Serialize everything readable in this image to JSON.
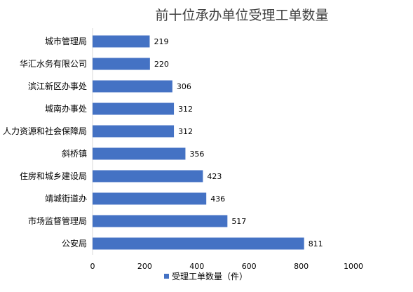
{
  "chart_data": {
    "type": "bar",
    "orientation": "horizontal",
    "title": "前十位承办单位受理工单数量",
    "categories": [
      "城市管理局",
      "华汇水务有限公司",
      "滨江新区办事处",
      "城南办事处",
      "人力资源和社会保障局",
      "斜桥镇",
      "住房和城乡建设局",
      "靖城街道办",
      "市场监督管理局",
      "公安局"
    ],
    "series": [
      {
        "name": "受理工单数量（件）",
        "values": [
          219,
          220,
          306,
          312,
          312,
          356,
          423,
          436,
          517,
          811
        ],
        "color": "#4472C4"
      }
    ],
    "xlim": [
      0,
      1000
    ],
    "xticks": [
      0,
      200,
      400,
      600,
      800,
      1000
    ],
    "grid": false,
    "legend": "bottom",
    "data_labels": true
  }
}
